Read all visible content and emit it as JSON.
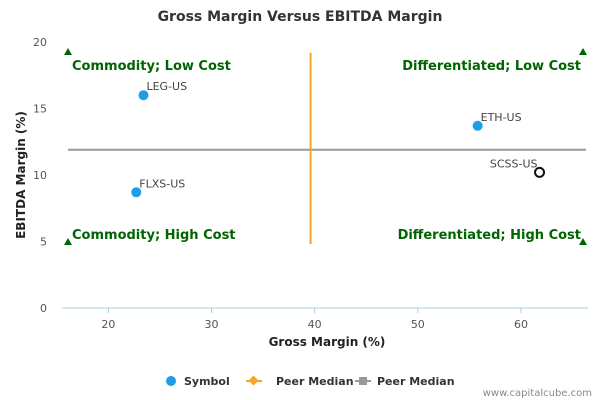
{
  "chart_data": {
    "type": "scatter",
    "title": "Gross Margin Versus EBITDA Margin",
    "xlabel": "Gross Margin (%)",
    "ylabel": "EBITDA Margin (%)",
    "xlim": [
      15.5,
      66.5
    ],
    "ylim": [
      0,
      20
    ],
    "xticks": [
      20,
      30,
      40,
      50,
      60
    ],
    "yticks": [
      0,
      5,
      10,
      15,
      20
    ],
    "points": [
      {
        "label": "LEG-US",
        "x": 23.4,
        "y": 16.0,
        "style": "filled"
      },
      {
        "label": "FLXS-US",
        "x": 22.7,
        "y": 8.7,
        "style": "filled"
      },
      {
        "label": "ETH-US",
        "x": 55.8,
        "y": 13.7,
        "style": "filled"
      },
      {
        "label": "SCSS-US",
        "x": 61.8,
        "y": 10.2,
        "style": "hollow"
      }
    ],
    "peer_median_x": 39.6,
    "peer_median_x_range": [
      4.8,
      19.2
    ],
    "peer_median_y": 11.9,
    "quadrants": [
      {
        "label": "Commodity; Low Cost",
        "position": "top-left"
      },
      {
        "label": "Differentiated; Low Cost",
        "position": "top-right"
      },
      {
        "label": "Commodity; High Cost",
        "position": "bottom-left"
      },
      {
        "label": "Differentiated; High Cost",
        "position": "bottom-right"
      }
    ],
    "legend": {
      "placement": "bottom",
      "entries": [
        {
          "name": "Symbol",
          "kind": "dot"
        },
        {
          "name": "Peer Median",
          "kind": "orange-line"
        },
        {
          "name": "Peer Median",
          "kind": "gray-line"
        }
      ]
    },
    "colors": {
      "symbol": "#1f9de6",
      "peer_median_x": "#f5a623",
      "peer_median_y": "#999999",
      "quadrant_text": "#006400",
      "marker": "#006400"
    },
    "credit": "www.capitalcube.com"
  }
}
